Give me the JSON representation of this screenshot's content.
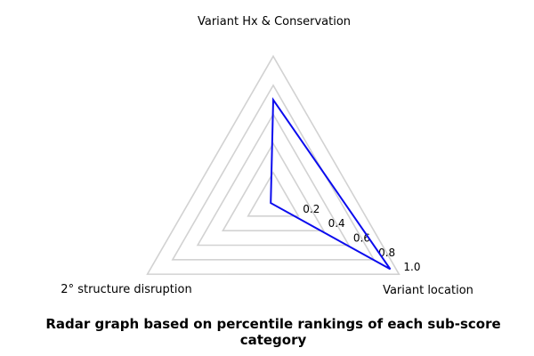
{
  "figure": {
    "background": "#ffffff"
  },
  "chart_data": {
    "type": "radar",
    "categories": [
      "Variant Hx & Conservation",
      "2° structure disruption",
      "Variant location"
    ],
    "series": [
      {
        "name": "percentile",
        "values": [
          0.7,
          0.02,
          0.93
        ]
      }
    ],
    "values": [
      0.7,
      0.02,
      0.93
    ],
    "tick_values": [
      0.2,
      0.4,
      0.6,
      0.8,
      1.0
    ],
    "tick_labels": [
      "0.2",
      "0.4",
      "0.6",
      "0.8",
      "1.0"
    ],
    "range": [
      0,
      1.0
    ],
    "grid": true,
    "legend": false,
    "grid_color": "#d2d2d2",
    "line_color": "#0b0bee",
    "text_color": "#000000",
    "caption": "Radar graph based on percentile rankings of each sub-score category"
  }
}
